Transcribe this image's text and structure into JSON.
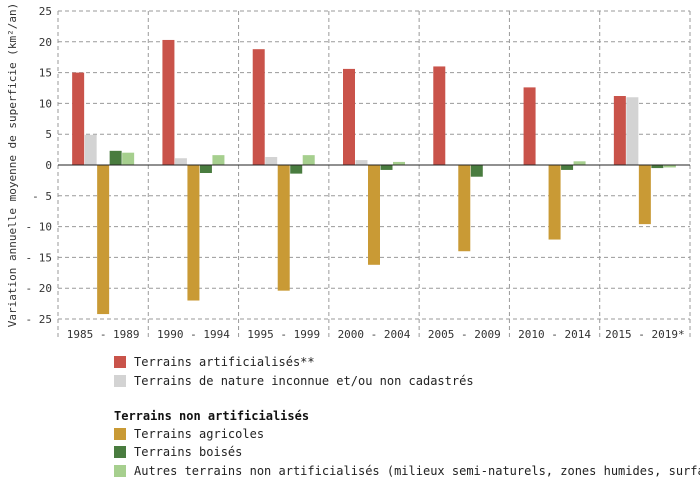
{
  "chart_data": {
    "type": "bar",
    "ylabel": "Variation annuelle moyenne de superficie (km²/an)",
    "ylim": [
      -25,
      25
    ],
    "yticks": [
      25,
      20,
      15,
      10,
      5,
      0,
      -5,
      -10,
      -15,
      -20,
      -25
    ],
    "ytick_labels": [
      "25",
      "20",
      "15",
      "10",
      "5",
      "0",
      "- 5",
      "- 10",
      "- 15",
      "- 20",
      "- 25"
    ],
    "grid": true,
    "categories": [
      "1985 - 1989",
      "1990 - 1994",
      "1995 - 1999",
      "2000 - 2004",
      "2005 - 2009",
      "2010 - 2014",
      "2015 - 2019*"
    ],
    "series": [
      {
        "name": "Terrains artificialisés**",
        "color": "#c9534a",
        "values": [
          15.0,
          20.3,
          18.8,
          15.6,
          16.0,
          12.6,
          11.2
        ]
      },
      {
        "name": "Terrains de nature inconnue et/ou non cadastrés",
        "color": "#d3d3d3",
        "values": [
          4.9,
          1.1,
          1.3,
          0.8,
          0.0,
          0.0,
          11.0
        ]
      },
      {
        "name": "Terrains agricoles",
        "color": "#c99a35",
        "values": [
          -24.2,
          -22.0,
          -20.4,
          -16.2,
          -14.0,
          -12.1,
          -9.6
        ]
      },
      {
        "name": "Terrains boisés",
        "color": "#497c3f",
        "values": [
          2.3,
          -1.3,
          -1.4,
          -0.8,
          -1.9,
          -0.8,
          -0.5
        ]
      },
      {
        "name": "Autres terrains non artificialisés (milieux semi-naturels, zones humides, surfaces en eau)",
        "color": "#a6cf8e",
        "values": [
          2.0,
          1.6,
          1.6,
          0.5,
          0.0,
          0.6,
          -0.4
        ]
      }
    ],
    "legend": {
      "placement": "bottom",
      "group_heading": "Terrains non artificialisés"
    }
  }
}
